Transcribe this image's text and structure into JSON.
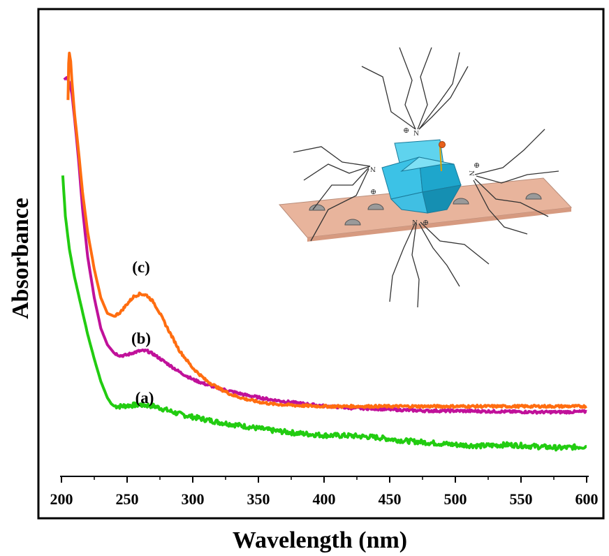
{
  "chart_data": {
    "type": "line",
    "xlabel": "Wavelength (nm)",
    "ylabel": "Absorbance",
    "xlim": [
      200,
      600
    ],
    "ylim": [
      0,
      1
    ],
    "x_ticks": [
      "200",
      "250",
      "300",
      "350",
      "400",
      "450",
      "500",
      "550",
      "600"
    ],
    "y_ticks": [],
    "grid": false,
    "legend": "none",
    "series": [
      {
        "name": "(a)",
        "color": "#22cc11",
        "points": [
          [
            201,
            0.7
          ],
          [
            203,
            0.6
          ],
          [
            206,
            0.52
          ],
          [
            210,
            0.45
          ],
          [
            215,
            0.38
          ],
          [
            220,
            0.31
          ],
          [
            225,
            0.25
          ],
          [
            230,
            0.195
          ],
          [
            235,
            0.155
          ],
          [
            238,
            0.14
          ],
          [
            240,
            0.135
          ],
          [
            245,
            0.134
          ],
          [
            250,
            0.136
          ],
          [
            260,
            0.138
          ],
          [
            270,
            0.135
          ],
          [
            280,
            0.125
          ],
          [
            290,
            0.115
          ],
          [
            300,
            0.108
          ],
          [
            320,
            0.095
          ],
          [
            340,
            0.085
          ],
          [
            360,
            0.075
          ],
          [
            380,
            0.068
          ],
          [
            400,
            0.063
          ],
          [
            420,
            0.062
          ],
          [
            440,
            0.058
          ],
          [
            460,
            0.05
          ],
          [
            480,
            0.045
          ],
          [
            500,
            0.04
          ],
          [
            520,
            0.037
          ],
          [
            540,
            0.04
          ],
          [
            560,
            0.036
          ],
          [
            580,
            0.032
          ],
          [
            600,
            0.036
          ]
        ]
      },
      {
        "name": "(b)",
        "color": "#c0119a",
        "points": [
          [
            202,
            0.935
          ],
          [
            204,
            0.94
          ],
          [
            206,
            0.928
          ],
          [
            208,
            0.9
          ],
          [
            210,
            0.84
          ],
          [
            213,
            0.74
          ],
          [
            216,
            0.62
          ],
          [
            220,
            0.5
          ],
          [
            225,
            0.4
          ],
          [
            230,
            0.325
          ],
          [
            235,
            0.285
          ],
          [
            240,
            0.265
          ],
          [
            245,
            0.258
          ],
          [
            250,
            0.26
          ],
          [
            255,
            0.266
          ],
          [
            260,
            0.27
          ],
          [
            265,
            0.27
          ],
          [
            270,
            0.262
          ],
          [
            280,
            0.24
          ],
          [
            290,
            0.218
          ],
          [
            300,
            0.2
          ],
          [
            310,
            0.188
          ],
          [
            320,
            0.178
          ],
          [
            340,
            0.162
          ],
          [
            360,
            0.15
          ],
          [
            380,
            0.142
          ],
          [
            400,
            0.135
          ],
          [
            420,
            0.13
          ],
          [
            440,
            0.128
          ],
          [
            460,
            0.125
          ],
          [
            480,
            0.123
          ],
          [
            500,
            0.123
          ],
          [
            520,
            0.122
          ],
          [
            540,
            0.121
          ],
          [
            560,
            0.12
          ],
          [
            580,
            0.12
          ],
          [
            600,
            0.121
          ]
        ]
      },
      {
        "name": "(c)",
        "color": "#ff6d10",
        "points": [
          [
            205,
            0.885
          ],
          [
            205.5,
            0.975
          ],
          [
            206,
            1.0
          ],
          [
            207,
            0.98
          ],
          [
            208,
            0.93
          ],
          [
            210,
            0.85
          ],
          [
            213,
            0.76
          ],
          [
            216,
            0.66
          ],
          [
            220,
            0.56
          ],
          [
            225,
            0.47
          ],
          [
            230,
            0.4
          ],
          [
            235,
            0.362
          ],
          [
            240,
            0.355
          ],
          [
            245,
            0.365
          ],
          [
            250,
            0.385
          ],
          [
            255,
            0.403
          ],
          [
            260,
            0.41
          ],
          [
            265,
            0.406
          ],
          [
            270,
            0.39
          ],
          [
            275,
            0.362
          ],
          [
            280,
            0.33
          ],
          [
            290,
            0.27
          ],
          [
            300,
            0.228
          ],
          [
            310,
            0.198
          ],
          [
            320,
            0.178
          ],
          [
            330,
            0.162
          ],
          [
            340,
            0.152
          ],
          [
            350,
            0.145
          ],
          [
            360,
            0.14
          ],
          [
            380,
            0.136
          ],
          [
            400,
            0.134
          ],
          [
            420,
            0.134
          ],
          [
            450,
            0.134
          ],
          [
            500,
            0.134
          ],
          [
            550,
            0.134
          ],
          [
            600,
            0.134
          ]
        ]
      }
    ]
  },
  "labels": {
    "a": "(a)",
    "b": "(b)",
    "c": "(c)"
  },
  "inset": {
    "symbol_n": "N",
    "symbol_plus": "⊕"
  }
}
